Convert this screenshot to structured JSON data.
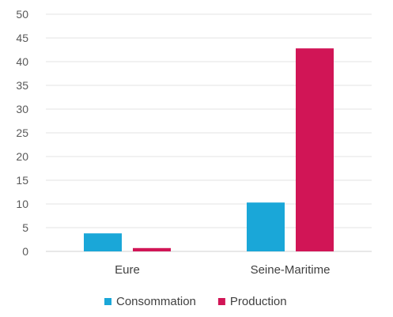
{
  "chart_data": {
    "type": "bar",
    "title": "",
    "xlabel": "",
    "ylabel": "",
    "categories": [
      "Eure",
      "Seine-Maritime"
    ],
    "series": [
      {
        "name": "Consommation",
        "values": [
          3.8,
          10.3
        ],
        "color": "#1aa7d8"
      },
      {
        "name": "Production",
        "values": [
          0.7,
          42.8
        ],
        "color": "#d11556"
      }
    ],
    "ylim": [
      0,
      50
    ],
    "yticks": [
      0,
      5,
      10,
      15,
      20,
      25,
      30,
      35,
      40,
      45,
      50
    ],
    "grid": true,
    "legend_position": "bottom"
  }
}
